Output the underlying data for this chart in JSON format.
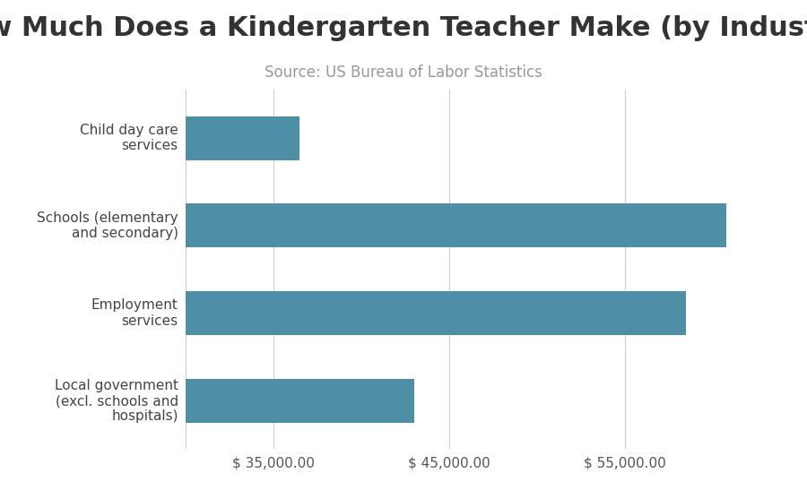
{
  "title": "How Much Does a Kindergarten Teacher Make (by Industry)",
  "subtitle": "Source: US Bureau of Labor Statistics",
  "categories": [
    "Local government\n(excl. schools and\nhospitals)",
    "Employment\nservices",
    "Schools (elementary\nand secondary)",
    "Child day care\nservices"
  ],
  "values": [
    43000,
    58500,
    60800,
    36500
  ],
  "bar_color": "#4e8fa6",
  "background_color": "#ffffff",
  "xlim": [
    30000,
    64000
  ],
  "xticks": [
    35000,
    45000,
    55000
  ],
  "xtick_labels": [
    "$ 35,000.00",
    "$ 45,000.00",
    "$ 55,000.00"
  ],
  "title_fontsize": 22,
  "subtitle_fontsize": 12,
  "tick_fontsize": 11,
  "label_fontsize": 11,
  "grid_color": "#cccccc",
  "bar_height": 0.5
}
